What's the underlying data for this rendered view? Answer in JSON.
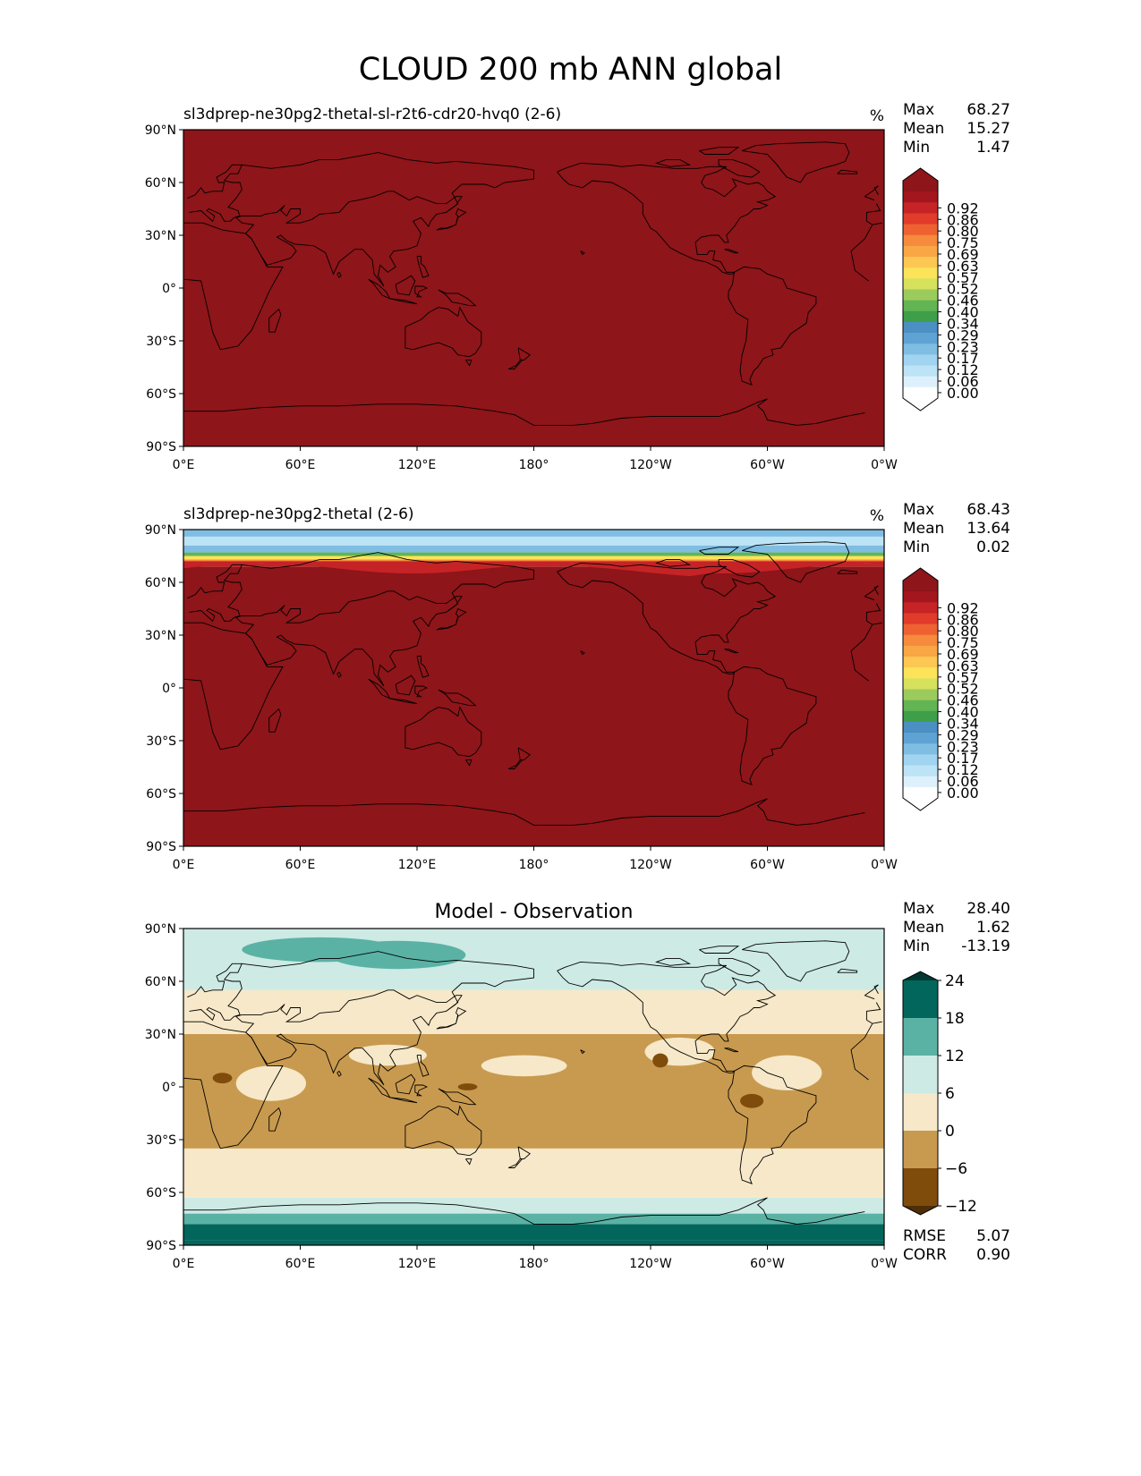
{
  "figure_title": "CLOUD 200 mb ANN global",
  "ticks": {
    "lat": [
      "90°N",
      "60°N",
      "30°N",
      "0°",
      "30°S",
      "60°S",
      "90°S"
    ],
    "lon": [
      "0°E",
      "60°E",
      "120°E",
      "180°",
      "120°W",
      "60°W",
      "0°W"
    ]
  },
  "colors": {
    "seq": [
      "#ffffff",
      "#ddf0fb",
      "#bde3f6",
      "#a1d4f0",
      "#7fbde2",
      "#5ea3d3",
      "#4b8fc3",
      "#3e9f4a",
      "#62b552",
      "#9ccb5d",
      "#d6e15c",
      "#fde35a",
      "#fcc753",
      "#f9a645",
      "#f68a3d",
      "#ee6231",
      "#e13b2b",
      "#c52326",
      "#a4161e",
      "#8e1519"
    ],
    "diff": [
      "#7f4c0c",
      "#c89a4f",
      "#f6e8c8",
      "#cdeae4",
      "#5ab2a5",
      "#03665c"
    ],
    "diff_under": "#4e2e06",
    "diff_over": "#013830"
  },
  "chart_data": [
    {
      "type": "heatmap",
      "subtitle": "sl3dprep-ne30pg2-thetal-sl-r2t6-cdr20-hvq0 (2-6)",
      "units": "%",
      "stats": [
        {
          "label": "Max",
          "value": "68.27"
        },
        {
          "label": "Mean",
          "value": "15.27"
        },
        {
          "label": "Min",
          "value": "1.47"
        }
      ],
      "colorbar_ticks": [
        "0.00",
        "0.06",
        "0.12",
        "0.17",
        "0.23",
        "0.29",
        "0.34",
        "0.40",
        "0.46",
        "0.52",
        "0.57",
        "0.63",
        "0.69",
        "0.75",
        "0.80",
        "0.86",
        "0.92"
      ],
      "xlim": [
        0,
        360
      ],
      "ylim": [
        -90,
        90
      ],
      "field_description": "uniform, above top colorbar level everywhere",
      "bands": [
        {
          "lat_min": -90,
          "lat_max": 90,
          "level": 19
        }
      ]
    },
    {
      "type": "heatmap",
      "subtitle": "sl3dprep-ne30pg2-thetal (2-6)",
      "units": "%",
      "stats": [
        {
          "label": "Max",
          "value": "68.43"
        },
        {
          "label": "Mean",
          "value": "13.64"
        },
        {
          "label": "Min",
          "value": "0.02"
        }
      ],
      "colorbar_ticks": [
        "0.00",
        "0.06",
        "0.12",
        "0.17",
        "0.23",
        "0.29",
        "0.34",
        "0.40",
        "0.46",
        "0.52",
        "0.57",
        "0.63",
        "0.69",
        "0.75",
        "0.80",
        "0.86",
        "0.92"
      ],
      "xlim": [
        0,
        360
      ],
      "ylim": [
        -90,
        90
      ],
      "bands": [
        {
          "lat_min": -90,
          "lat_max": 69,
          "level": 19
        },
        {
          "lat_min": 69,
          "lat_max": 71,
          "level": 17
        },
        {
          "lat_min": 71,
          "lat_max": 73,
          "level": 14
        },
        {
          "lat_min": 73,
          "lat_max": 75,
          "level": 11
        },
        {
          "lat_min": 75,
          "lat_max": 77,
          "level": 8
        },
        {
          "lat_min": 77,
          "lat_max": 81,
          "level": 4
        },
        {
          "lat_min": 81,
          "lat_max": 86,
          "level": 2
        },
        {
          "lat_min": 86,
          "lat_max": 90,
          "level": 4
        }
      ]
    },
    {
      "type": "heatmap",
      "title": "Model - Observation",
      "stats": [
        {
          "label": "Max",
          "value": "28.40"
        },
        {
          "label": "Mean",
          "value": "1.62"
        },
        {
          "label": "Min",
          "value": "-13.19"
        }
      ],
      "colorbar_ticks": [
        "24",
        "18",
        "12",
        "6",
        "0",
        "−6",
        "−12"
      ],
      "levels": [
        -12,
        -6,
        0,
        6,
        12,
        18,
        24
      ],
      "metrics": [
        {
          "label": "RMSE",
          "value": "5.07"
        },
        {
          "label": "CORR",
          "value": "0.90"
        }
      ],
      "xlim": [
        0,
        360
      ],
      "ylim": [
        -90,
        90
      ],
      "bands": [
        {
          "lat_min": -90,
          "lat_max": -87,
          "level": 5
        },
        {
          "lat_min": -87,
          "lat_max": -78,
          "level": 5
        },
        {
          "lat_min": -78,
          "lat_max": -72,
          "level": 4
        },
        {
          "lat_min": -72,
          "lat_max": -63,
          "level": 3
        },
        {
          "lat_min": -63,
          "lat_max": -35,
          "level": 2
        },
        {
          "lat_min": -35,
          "lat_max": 30,
          "level": 1
        },
        {
          "lat_min": 30,
          "lat_max": 55,
          "level": 2
        },
        {
          "lat_min": 55,
          "lat_max": 90,
          "level": 3
        }
      ],
      "patches": [
        {
          "lon": 70,
          "lat": 78,
          "rlon": 40,
          "rlat": 7,
          "level": 4
        },
        {
          "lon": 110,
          "lat": 75,
          "rlon": 35,
          "rlat": 8,
          "level": 4
        },
        {
          "lon": 45,
          "lat": 2,
          "rlon": 18,
          "rlat": 10,
          "level": 2
        },
        {
          "lon": 105,
          "lat": 18,
          "rlon": 20,
          "rlat": 6,
          "level": 2
        },
        {
          "lon": 175,
          "lat": 12,
          "rlon": 22,
          "rlat": 6,
          "level": 2
        },
        {
          "lon": 255,
          "lat": 20,
          "rlon": 18,
          "rlat": 8,
          "level": 2
        },
        {
          "lon": 310,
          "lat": 8,
          "rlon": 18,
          "rlat": 10,
          "level": 2
        },
        {
          "lon": 20,
          "lat": 5,
          "rlon": 5,
          "rlat": 3,
          "level": 0
        },
        {
          "lon": 146,
          "lat": 0,
          "rlon": 5,
          "rlat": 2,
          "level": 0
        },
        {
          "lon": 245,
          "lat": 15,
          "rlon": 4,
          "rlat": 4,
          "level": 0
        },
        {
          "lon": 292,
          "lat": -8,
          "rlon": 6,
          "rlat": 4,
          "level": 0
        }
      ]
    }
  ]
}
